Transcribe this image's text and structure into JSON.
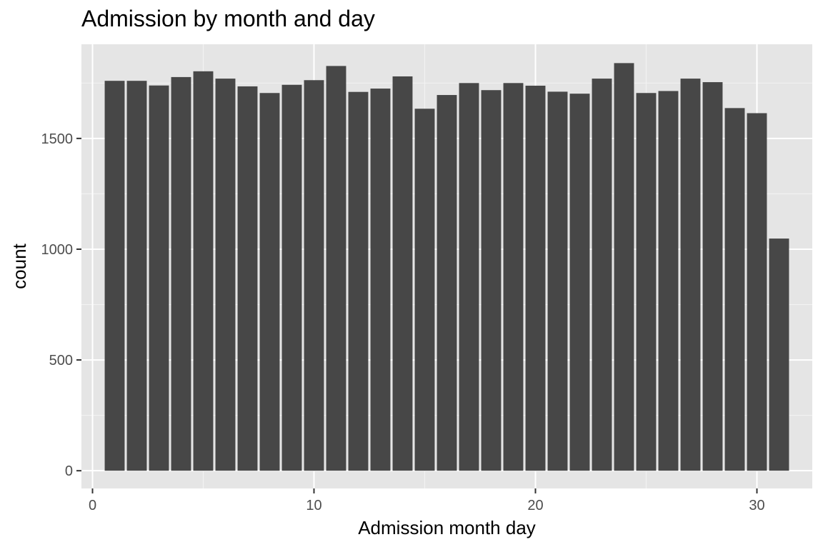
{
  "chart_data": {
    "type": "bar",
    "title": "Admission by month and day",
    "xlabel": "Admission month day",
    "ylabel": "count",
    "xlim": [
      -0.5,
      32.5
    ],
    "ylim": [
      -80,
      1925
    ],
    "x_ticks": [
      0,
      10,
      20,
      30
    ],
    "y_ticks": [
      0,
      500,
      1000,
      1500
    ],
    "x_tick_labels": [
      "0",
      "10",
      "20",
      "30"
    ],
    "y_tick_labels": [
      "0",
      "500",
      "1000",
      "1500"
    ],
    "grid": true,
    "background": "#e5e5e5",
    "bar_color": "#474747",
    "x": [
      1,
      2,
      3,
      4,
      5,
      6,
      7,
      8,
      9,
      10,
      11,
      12,
      13,
      14,
      15,
      16,
      17,
      18,
      19,
      20,
      21,
      22,
      23,
      24,
      25,
      26,
      27,
      28,
      29,
      30,
      31
    ],
    "values": [
      1760,
      1760,
      1739,
      1777,
      1803,
      1770,
      1735,
      1705,
      1742,
      1763,
      1827,
      1710,
      1725,
      1780,
      1634,
      1696,
      1750,
      1718,
      1750,
      1738,
      1711,
      1702,
      1770,
      1840,
      1705,
      1714,
      1770,
      1754,
      1637,
      1614,
      1048
    ]
  }
}
